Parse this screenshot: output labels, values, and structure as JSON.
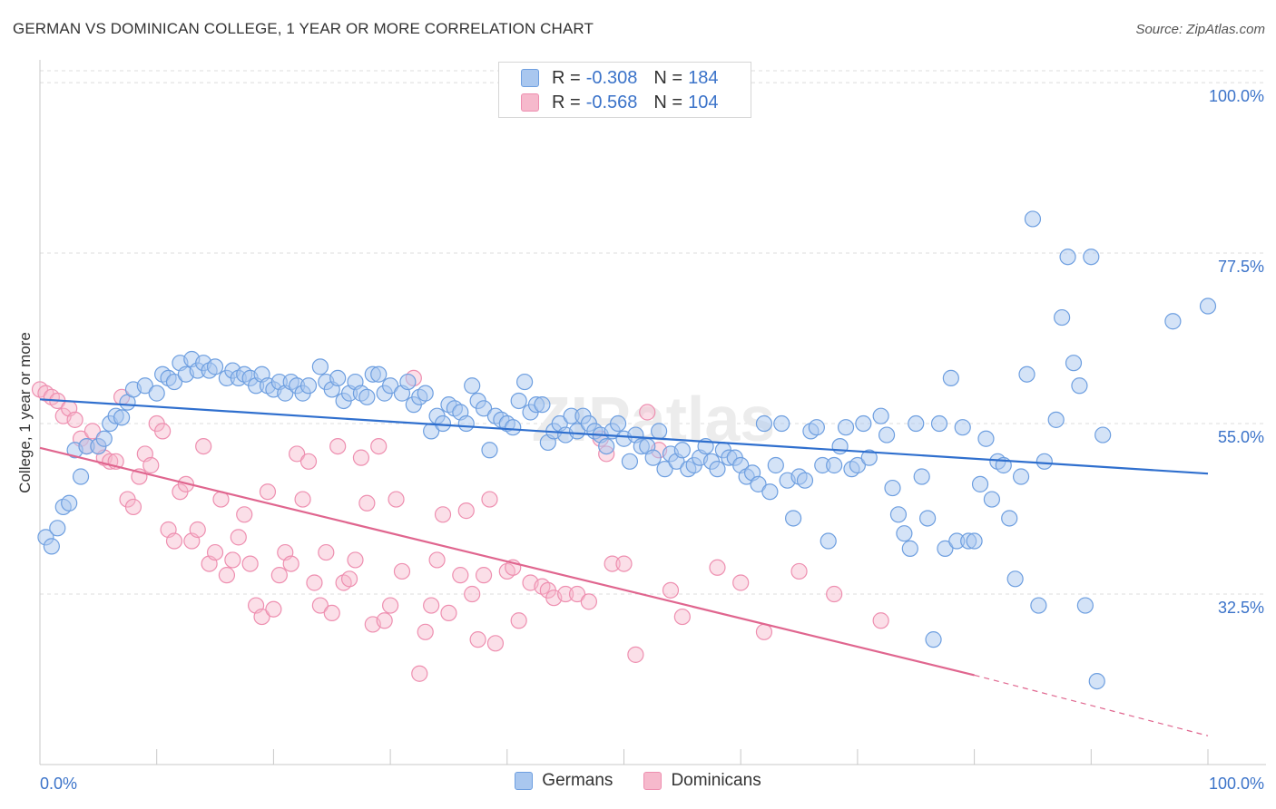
{
  "title": "GERMAN VS DOMINICAN COLLEGE, 1 YEAR OR MORE CORRELATION CHART",
  "source": "Source: ZipAtlas.com",
  "watermark": "ZIPatlas",
  "legend_top": {
    "rows": [
      {
        "r_label": "R = ",
        "r_value": "-0.308",
        "n_label": "N = ",
        "n_value": "184"
      },
      {
        "r_label": "R = ",
        "r_value": "-0.568",
        "n_label": "N = ",
        "n_value": "104"
      }
    ]
  },
  "legend_bottom": {
    "germans": "Germans",
    "dominicans": "Dominicans"
  },
  "colors": {
    "german_fill": "#a9c7ef",
    "german_stroke": "#6e9fe0",
    "german_line": "#2f6fce",
    "dominican_fill": "#f6b9cc",
    "dominican_stroke": "#ee8fb0",
    "dominican_line": "#e0668f",
    "axis_label": "#3b73c9"
  },
  "chart_data": {
    "type": "scatter",
    "title": "GERMAN VS DOMINICAN COLLEGE, 1 YEAR OR MORE CORRELATION CHART",
    "xlabel": "",
    "ylabel": "College, 1 year or more",
    "xlim": [
      0,
      100
    ],
    "ylim": [
      10,
      103
    ],
    "x_tick_labels": [
      "0.0%",
      "100.0%"
    ],
    "y_ticks": [
      32.5,
      55.0,
      77.5,
      100.0
    ],
    "y_tick_labels": [
      "32.5%",
      "55.0%",
      "77.5%",
      "100.0%"
    ],
    "grid": true,
    "legend_position": "top-center",
    "series": [
      {
        "name": "Germans",
        "r": -0.308,
        "n": 184,
        "trend": [
          [
            0,
            58.2
          ],
          [
            100,
            48.4
          ]
        ],
        "points": [
          [
            0.5,
            40
          ],
          [
            1,
            38.8
          ],
          [
            1.5,
            41.2
          ],
          [
            2,
            44
          ],
          [
            2.5,
            44.5
          ],
          [
            3,
            51.5
          ],
          [
            3.5,
            48
          ],
          [
            4,
            52
          ],
          [
            5,
            52
          ],
          [
            5.5,
            53
          ],
          [
            6,
            55
          ],
          [
            6.5,
            56
          ],
          [
            7,
            55.8
          ],
          [
            7.5,
            57.8
          ],
          [
            8,
            59.5
          ],
          [
            9,
            60
          ],
          [
            10,
            59
          ],
          [
            10.5,
            61.5
          ],
          [
            11,
            61
          ],
          [
            11.5,
            60.5
          ],
          [
            12,
            63
          ],
          [
            12.5,
            61.5
          ],
          [
            13,
            63.5
          ],
          [
            13.5,
            62
          ],
          [
            14,
            63
          ],
          [
            14.5,
            62
          ],
          [
            15,
            62.5
          ],
          [
            16,
            61
          ],
          [
            16.5,
            62
          ],
          [
            17,
            61
          ],
          [
            17.5,
            61.5
          ],
          [
            18,
            61
          ],
          [
            18.5,
            60
          ],
          [
            19,
            61.5
          ],
          [
            19.5,
            60
          ],
          [
            20,
            59.5
          ],
          [
            20.5,
            60.5
          ],
          [
            21,
            59
          ],
          [
            21.5,
            60.5
          ],
          [
            22,
            60
          ],
          [
            22.5,
            59
          ],
          [
            23,
            60
          ],
          [
            24,
            62.5
          ],
          [
            24.5,
            60.5
          ],
          [
            25,
            59.5
          ],
          [
            25.5,
            61
          ],
          [
            26,
            58
          ],
          [
            26.5,
            59
          ],
          [
            27,
            60.5
          ],
          [
            27.5,
            59
          ],
          [
            28,
            58.5
          ],
          [
            28.5,
            61.5
          ],
          [
            29,
            61.5
          ],
          [
            29.5,
            59
          ],
          [
            30,
            60
          ],
          [
            31,
            59
          ],
          [
            31.5,
            60.5
          ],
          [
            32,
            57.5
          ],
          [
            32.5,
            58.5
          ],
          [
            33,
            59
          ],
          [
            33.5,
            54
          ],
          [
            34,
            56
          ],
          [
            34.5,
            55
          ],
          [
            35,
            57.5
          ],
          [
            35.5,
            57
          ],
          [
            36,
            56.5
          ],
          [
            36.5,
            55
          ],
          [
            37,
            60
          ],
          [
            37.5,
            58
          ],
          [
            38,
            57
          ],
          [
            38.5,
            51.5
          ],
          [
            39,
            56
          ],
          [
            39.5,
            55.5
          ],
          [
            40,
            55
          ],
          [
            40.5,
            54.5
          ],
          [
            41,
            58
          ],
          [
            41.5,
            60.5
          ],
          [
            42,
            56.5
          ],
          [
            42.5,
            57.5
          ],
          [
            43,
            57.5
          ],
          [
            43.5,
            52.5
          ],
          [
            44,
            54
          ],
          [
            44.5,
            55
          ],
          [
            45,
            53.5
          ],
          [
            45.5,
            56
          ],
          [
            46,
            54
          ],
          [
            46.5,
            56
          ],
          [
            47,
            55
          ],
          [
            47.5,
            54
          ],
          [
            48,
            53.5
          ],
          [
            48.5,
            52
          ],
          [
            49,
            54
          ],
          [
            49.5,
            55
          ],
          [
            50,
            53
          ],
          [
            50.5,
            50
          ],
          [
            51,
            53.5
          ],
          [
            51.5,
            52
          ],
          [
            52,
            52
          ],
          [
            52.5,
            50.5
          ],
          [
            53,
            54
          ],
          [
            53.5,
            49
          ],
          [
            54,
            51
          ],
          [
            54.5,
            50
          ],
          [
            55,
            51.5
          ],
          [
            55.5,
            49
          ],
          [
            56,
            49.5
          ],
          [
            56.5,
            50.5
          ],
          [
            57,
            52
          ],
          [
            57.5,
            50
          ],
          [
            58,
            49
          ],
          [
            58.5,
            51.5
          ],
          [
            59,
            50.5
          ],
          [
            59.5,
            50.5
          ],
          [
            60,
            49.5
          ],
          [
            60.5,
            48
          ],
          [
            61,
            48.5
          ],
          [
            61.5,
            47
          ],
          [
            62,
            55
          ],
          [
            62.5,
            46
          ],
          [
            63,
            49.5
          ],
          [
            63.5,
            55
          ],
          [
            64,
            47.5
          ],
          [
            64.5,
            42.5
          ],
          [
            65,
            48
          ],
          [
            65.5,
            47.5
          ],
          [
            66,
            54
          ],
          [
            66.5,
            54.5
          ],
          [
            67,
            49.5
          ],
          [
            67.5,
            39.5
          ],
          [
            68,
            49.5
          ],
          [
            68.5,
            52
          ],
          [
            69,
            54.5
          ],
          [
            69.5,
            49
          ],
          [
            70,
            49.5
          ],
          [
            70.5,
            55
          ],
          [
            71,
            50.5
          ],
          [
            72,
            56
          ],
          [
            72.5,
            53.5
          ],
          [
            73,
            46.5
          ],
          [
            73.5,
            43
          ],
          [
            74,
            40.5
          ],
          [
            74.5,
            38.5
          ],
          [
            75,
            55
          ],
          [
            75.5,
            48
          ],
          [
            76,
            42.5
          ],
          [
            76.5,
            26.5
          ],
          [
            77,
            55
          ],
          [
            77.5,
            38.5
          ],
          [
            78,
            61
          ],
          [
            78.5,
            39.5
          ],
          [
            79,
            54.5
          ],
          [
            79.5,
            39.5
          ],
          [
            80,
            39.5
          ],
          [
            80.5,
            47
          ],
          [
            81,
            53
          ],
          [
            81.5,
            45
          ],
          [
            82,
            50
          ],
          [
            82.5,
            49.5
          ],
          [
            83,
            42.5
          ],
          [
            83.5,
            34.5
          ],
          [
            84,
            48
          ],
          [
            84.5,
            61.5
          ],
          [
            85,
            82
          ],
          [
            85.5,
            31
          ],
          [
            86,
            50
          ],
          [
            87,
            55.5
          ],
          [
            87.5,
            69
          ],
          [
            88,
            77
          ],
          [
            88.5,
            63
          ],
          [
            89,
            60
          ],
          [
            89.5,
            31
          ],
          [
            90,
            77
          ],
          [
            90.5,
            21
          ],
          [
            91,
            53.5
          ],
          [
            97,
            68.5
          ],
          [
            100,
            70.5
          ]
        ]
      },
      {
        "name": "Dominicans",
        "r": -0.568,
        "n": 104,
        "trend": [
          [
            0,
            51.8
          ],
          [
            80,
            21.8
          ]
        ],
        "trend_dashed": [
          [
            80,
            21.8
          ],
          [
            100,
            13.8
          ]
        ],
        "points": [
          [
            0,
            59.5
          ],
          [
            0.5,
            59
          ],
          [
            1,
            58.5
          ],
          [
            1.5,
            58
          ],
          [
            2,
            56
          ],
          [
            2.5,
            57
          ],
          [
            3,
            55.5
          ],
          [
            3.5,
            53
          ],
          [
            4,
            52
          ],
          [
            4.5,
            54
          ],
          [
            5,
            52
          ],
          [
            5.5,
            50.5
          ],
          [
            6,
            50
          ],
          [
            6.5,
            50
          ],
          [
            7,
            58.5
          ],
          [
            7.5,
            45
          ],
          [
            8,
            44
          ],
          [
            8.5,
            48
          ],
          [
            9,
            51
          ],
          [
            9.5,
            49.5
          ],
          [
            10,
            55
          ],
          [
            10.5,
            54
          ],
          [
            11,
            41
          ],
          [
            11.5,
            39.5
          ],
          [
            12,
            46
          ],
          [
            12.5,
            47
          ],
          [
            13,
            39.5
          ],
          [
            13.5,
            41
          ],
          [
            14,
            52
          ],
          [
            14.5,
            36.5
          ],
          [
            15,
            38
          ],
          [
            15.5,
            45
          ],
          [
            16,
            35
          ],
          [
            16.5,
            37
          ],
          [
            17,
            40
          ],
          [
            17.5,
            43
          ],
          [
            18,
            36.5
          ],
          [
            18.5,
            31
          ],
          [
            19,
            29.5
          ],
          [
            19.5,
            46
          ],
          [
            20,
            30.5
          ],
          [
            20.5,
            35
          ],
          [
            21,
            38
          ],
          [
            21.5,
            36.5
          ],
          [
            22,
            51
          ],
          [
            22.5,
            45
          ],
          [
            23,
            50
          ],
          [
            23.5,
            34
          ],
          [
            24,
            31
          ],
          [
            24.5,
            38
          ],
          [
            25,
            30
          ],
          [
            25.5,
            52
          ],
          [
            26,
            34
          ],
          [
            26.5,
            34.5
          ],
          [
            27,
            37
          ],
          [
            27.5,
            50.5
          ],
          [
            28,
            44.5
          ],
          [
            28.5,
            28.5
          ],
          [
            29,
            52
          ],
          [
            29.5,
            29
          ],
          [
            30,
            31
          ],
          [
            30.5,
            45
          ],
          [
            31,
            35.5
          ],
          [
            32,
            61
          ],
          [
            32.5,
            22
          ],
          [
            33,
            27.5
          ],
          [
            33.5,
            31
          ],
          [
            34,
            37
          ],
          [
            34.5,
            43
          ],
          [
            35,
            30
          ],
          [
            36,
            35
          ],
          [
            36.5,
            43.5
          ],
          [
            37,
            32.5
          ],
          [
            37.5,
            26.5
          ],
          [
            38,
            35
          ],
          [
            38.5,
            45
          ],
          [
            39,
            26
          ],
          [
            40,
            35.5
          ],
          [
            40.5,
            36
          ],
          [
            41,
            29
          ],
          [
            42,
            34
          ],
          [
            43,
            33.5
          ],
          [
            43.5,
            33
          ],
          [
            44,
            32
          ],
          [
            45,
            32.5
          ],
          [
            46,
            32.5
          ],
          [
            47,
            31.5
          ],
          [
            48,
            53
          ],
          [
            48.5,
            51
          ],
          [
            49,
            36.5
          ],
          [
            50,
            36.5
          ],
          [
            51,
            24.5
          ],
          [
            52,
            56.5
          ],
          [
            53,
            51.5
          ],
          [
            54,
            33
          ],
          [
            55,
            29.5
          ],
          [
            58,
            36
          ],
          [
            60,
            34
          ],
          [
            62,
            27.5
          ],
          [
            65,
            35.5
          ],
          [
            68,
            32.5
          ],
          [
            72,
            29
          ]
        ]
      }
    ]
  }
}
